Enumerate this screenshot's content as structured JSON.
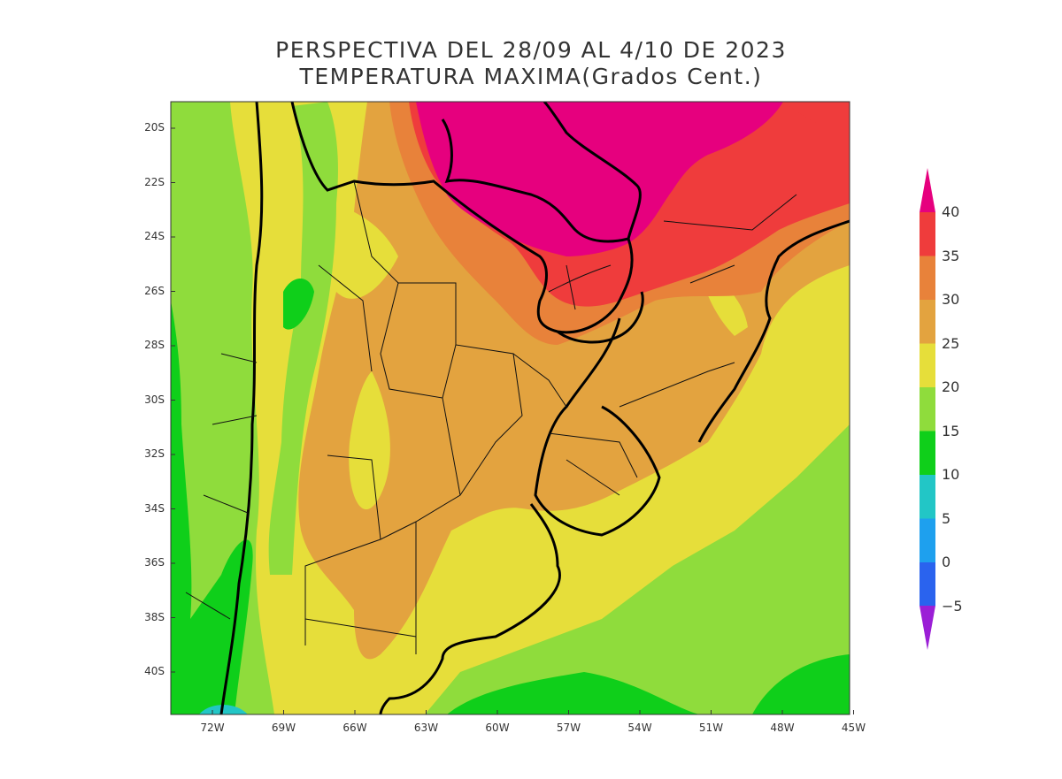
{
  "title": {
    "line1": "PERSPECTIVA DEL 28/09 AL 4/10 DE 2023",
    "line2": "TEMPERATURA MAXIMA(Grados Cent.)"
  },
  "map": {
    "lat_ticks": [
      "20S",
      "22S",
      "24S",
      "26S",
      "28S",
      "30S",
      "32S",
      "34S",
      "36S",
      "38S",
      "40S"
    ],
    "lon_ticks": [
      "72W",
      "69W",
      "66W",
      "63W",
      "60W",
      "57W",
      "54W",
      "51W",
      "48W",
      "45W"
    ]
  },
  "colorbar": {
    "labels": [
      "40",
      "35",
      "30",
      "25",
      "20",
      "15",
      "10",
      "5",
      "0",
      "−5"
    ],
    "colors": {
      "above_40": "#e6007e",
      "35_40": "#ef3c3c",
      "30_35": "#e8823a",
      "25_30": "#e3a33f",
      "20_25": "#e6de3a",
      "15_20": "#8fdc3c",
      "10_15": "#0fcf1a",
      "5_10": "#22c6c6",
      "0_5": "#1ea0ee",
      "m5_0": "#2a63ee",
      "below_m5": "#9b1fd6"
    }
  }
}
